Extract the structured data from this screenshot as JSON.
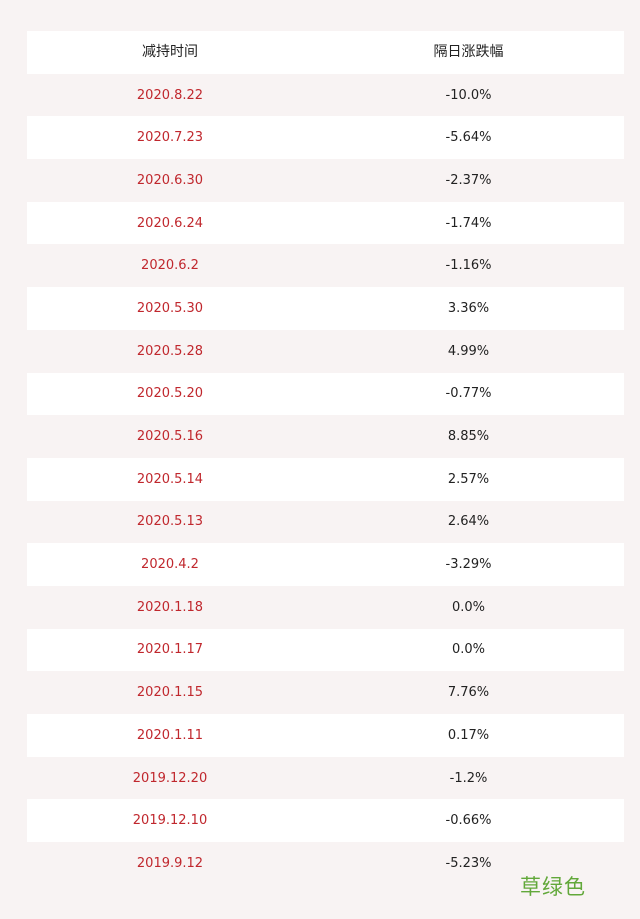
{
  "table": {
    "headers": [
      "减持时间",
      "隔日涨跌幅"
    ],
    "rows": [
      {
        "date": "2020.8.22",
        "change": "-10.0%"
      },
      {
        "date": "2020.7.23",
        "change": "-5.64%"
      },
      {
        "date": "2020.6.30",
        "change": "-2.37%"
      },
      {
        "date": "2020.6.24",
        "change": "-1.74%"
      },
      {
        "date": "2020.6.2",
        "change": "-1.16%"
      },
      {
        "date": "2020.5.30",
        "change": "3.36%"
      },
      {
        "date": "2020.5.28",
        "change": "4.99%"
      },
      {
        "date": "2020.5.20",
        "change": "-0.77%"
      },
      {
        "date": "2020.5.16",
        "change": "8.85%"
      },
      {
        "date": "2020.5.14",
        "change": "2.57%"
      },
      {
        "date": "2020.5.13",
        "change": "2.64%"
      },
      {
        "date": "2020.4.2",
        "change": "-3.29%"
      },
      {
        "date": "2020.1.18",
        "change": "0.0%"
      },
      {
        "date": "2020.1.17",
        "change": "0.0%"
      },
      {
        "date": "2020.1.15",
        "change": "7.76%"
      },
      {
        "date": "2020.1.11",
        "change": "0.17%"
      },
      {
        "date": "2019.12.20",
        "change": "-1.2%"
      },
      {
        "date": "2019.12.10",
        "change": "-0.66%"
      },
      {
        "date": "2019.9.12",
        "change": "-5.23%"
      }
    ]
  },
  "watermark": {
    "text": "草绿色"
  },
  "colors": {
    "date_text": "#c0272d",
    "value_text": "#222222",
    "row_white": "#ffffff",
    "row_tinted": "#f8f3f3",
    "watermark": "#62a83a"
  }
}
